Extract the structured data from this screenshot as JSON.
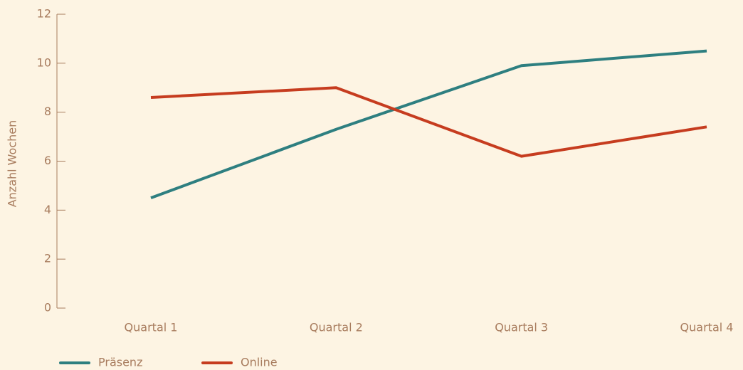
{
  "chart_data": {
    "type": "line",
    "y_label": "Anzahl Wochen",
    "categories": [
      "Quartal 1",
      "Quartal 2",
      "Quartal 3",
      "Quartal 4"
    ],
    "series": [
      {
        "name": "Präsenz",
        "color": "#2e7f80",
        "values": [
          4.5,
          7.3,
          9.9,
          10.5
        ]
      },
      {
        "name": "Online",
        "color": "#c63c1f",
        "values": [
          8.6,
          9.0,
          6.2,
          7.4
        ]
      }
    ],
    "ylim": [
      0,
      12
    ],
    "yticks": [
      0,
      2,
      4,
      6,
      8,
      10,
      12
    ],
    "legend": "bottom-left"
  }
}
